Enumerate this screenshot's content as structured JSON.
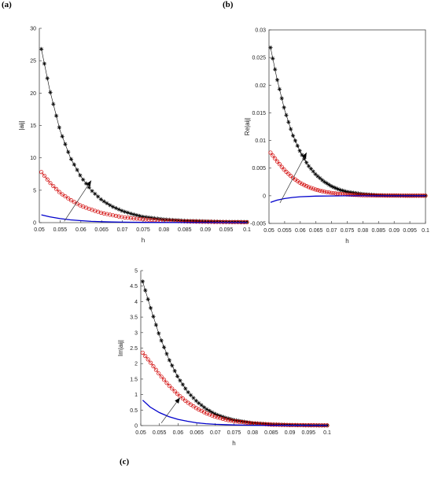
{
  "figure": {
    "panel_labels": [
      "(a)",
      "(b)",
      "(c)"
    ]
  },
  "chart_data": [
    {
      "type": "line",
      "panel": "(a)",
      "xlabel": "h",
      "ylabel": "|aij|",
      "xlim": [
        0.05,
        0.1
      ],
      "ylim": [
        0,
        30
      ],
      "xticks": [
        "0.05",
        "0.055",
        "0.06",
        "0.065",
        "0.07",
        "0.075",
        "0.08",
        "0.085",
        "0.09",
        "0.095",
        "0.1"
      ],
      "yticks": [
        "0",
        "5",
        "10",
        "15",
        "20",
        "25",
        "30"
      ],
      "grid": false,
      "arrow": {
        "from": [
          0.056,
          0.2
        ],
        "to": [
          0.0625,
          6.5
        ]
      },
      "series": [
        {
          "color": "#000000",
          "marker": "asterisk",
          "x": [
            0.0505,
            0.0525,
            0.055,
            0.0575,
            0.06,
            0.0625,
            0.065,
            0.0675,
            0.07,
            0.0725,
            0.075,
            0.08,
            0.085,
            0.09,
            0.095,
            0.1
          ],
          "values": [
            26.8,
            20.5,
            14.2,
            10.0,
            7.1,
            5.0,
            3.5,
            2.5,
            1.8,
            1.3,
            0.9,
            0.5,
            0.3,
            0.2,
            0.12,
            0.1
          ]
        },
        {
          "color": "#d00000",
          "marker": "circle",
          "x": [
            0.0505,
            0.0525,
            0.055,
            0.0575,
            0.06,
            0.0625,
            0.065,
            0.0675,
            0.07,
            0.0725,
            0.075,
            0.08,
            0.085,
            0.09,
            0.095,
            0.1
          ],
          "values": [
            7.8,
            6.2,
            4.6,
            3.5,
            2.6,
            2.0,
            1.5,
            1.15,
            0.85,
            0.65,
            0.5,
            0.3,
            0.18,
            0.12,
            0.08,
            0.05
          ]
        },
        {
          "color": "#0000cc",
          "marker": "none",
          "x": [
            0.0505,
            0.0525,
            0.055,
            0.0575,
            0.06,
            0.0625,
            0.065,
            0.0675,
            0.07,
            0.075,
            0.08,
            0.09,
            0.1
          ],
          "values": [
            1.2,
            0.9,
            0.62,
            0.42,
            0.3,
            0.2,
            0.14,
            0.1,
            0.07,
            0.04,
            0.02,
            0.01,
            0.005
          ]
        }
      ]
    },
    {
      "type": "line",
      "panel": "(b)",
      "xlabel": "h",
      "ylabel": "Re|aij|",
      "xlim": [
        0.05,
        0.1
      ],
      "ylim": [
        -0.005,
        0.03
      ],
      "xticks": [
        "0.05",
        "0.055",
        "0.06",
        "0.065",
        "0.07",
        "0.075",
        "0.08",
        "0.085",
        "0.09",
        "0.095",
        "0.1"
      ],
      "yticks": [
        "-0.005",
        "0",
        "0.005",
        "0.01",
        "0.015",
        "0.02",
        "0.025",
        "0.03"
      ],
      "grid": false,
      "arrow": {
        "from": [
          0.0535,
          -0.0013
        ],
        "to": [
          0.062,
          0.0078
        ]
      },
      "series": [
        {
          "color": "#000000",
          "marker": "asterisk",
          "x": [
            0.0505,
            0.0525,
            0.055,
            0.0575,
            0.06,
            0.0625,
            0.065,
            0.0675,
            0.07,
            0.0725,
            0.075,
            0.08,
            0.085,
            0.09,
            0.095,
            0.1
          ],
          "values": [
            0.0268,
            0.0213,
            0.0155,
            0.0111,
            0.0079,
            0.0055,
            0.0038,
            0.0026,
            0.0017,
            0.0011,
            0.0007,
            0.0003,
            0.0001,
            5e-05,
            2e-05,
            1e-05
          ]
        },
        {
          "color": "#d00000",
          "marker": "circle",
          "x": [
            0.0505,
            0.0525,
            0.055,
            0.0575,
            0.06,
            0.0625,
            0.065,
            0.0675,
            0.07,
            0.0725,
            0.075,
            0.08,
            0.085,
            0.09,
            0.095,
            0.1
          ],
          "values": [
            0.0078,
            0.0063,
            0.0046,
            0.0033,
            0.0023,
            0.0016,
            0.0011,
            0.00075,
            0.0005,
            0.00033,
            0.00022,
            0.0001,
            4e-05,
            2e-05,
            1e-05,
            0.0
          ]
        },
        {
          "color": "#0000cc",
          "marker": "none",
          "x": [
            0.0505,
            0.0525,
            0.055,
            0.0575,
            0.06,
            0.065,
            0.07,
            0.075,
            0.08,
            0.09,
            0.1
          ],
          "values": [
            -0.0012,
            -0.0008,
            -0.0005,
            -0.0003,
            -0.00018,
            -7e-05,
            -3e-05,
            -1e-05,
            0.0,
            0.0,
            0.0
          ]
        }
      ]
    },
    {
      "type": "line",
      "panel": "(c)",
      "xlabel": "h",
      "ylabel": "Im|aij|",
      "xlim": [
        0.05,
        0.1
      ],
      "ylim": [
        0,
        5
      ],
      "xticks": [
        "0.05",
        "0.055",
        "0.06",
        "0.065",
        "0.07",
        "0.075",
        "0.08",
        "0.085",
        "0.09",
        "0.095",
        "0.1"
      ],
      "yticks": [
        "0",
        "0.5",
        "1",
        "1.5",
        "2",
        "2.5",
        "3",
        "3.5",
        "4",
        "4.5",
        "5"
      ],
      "grid": false,
      "arrow": {
        "from": [
          0.0555,
          0.08
        ],
        "to": [
          0.0605,
          0.9
        ]
      },
      "series": [
        {
          "color": "#000000",
          "marker": "asterisk",
          "x": [
            0.0505,
            0.0525,
            0.055,
            0.0575,
            0.06,
            0.0625,
            0.065,
            0.0675,
            0.07,
            0.0725,
            0.075,
            0.08,
            0.085,
            0.09,
            0.095,
            0.1
          ],
          "values": [
            4.65,
            3.85,
            2.9,
            2.15,
            1.55,
            1.1,
            0.78,
            0.54,
            0.37,
            0.26,
            0.18,
            0.08,
            0.04,
            0.02,
            0.01,
            0.005
          ]
        },
        {
          "color": "#d00000",
          "marker": "circle",
          "x": [
            0.0505,
            0.0525,
            0.055,
            0.0575,
            0.06,
            0.0625,
            0.065,
            0.0675,
            0.07,
            0.0725,
            0.075,
            0.08,
            0.085,
            0.09,
            0.095,
            0.1
          ],
          "values": [
            2.35,
            2.05,
            1.65,
            1.3,
            1.0,
            0.75,
            0.55,
            0.4,
            0.28,
            0.2,
            0.14,
            0.07,
            0.03,
            0.015,
            0.008,
            0.004
          ]
        },
        {
          "color": "#0000cc",
          "marker": "none",
          "x": [
            0.0505,
            0.0525,
            0.055,
            0.0575,
            0.06,
            0.0625,
            0.065,
            0.0675,
            0.07,
            0.075,
            0.08,
            0.09,
            0.1
          ],
          "values": [
            0.82,
            0.6,
            0.42,
            0.29,
            0.2,
            0.14,
            0.09,
            0.06,
            0.04,
            0.02,
            0.01,
            0.004,
            0.002
          ]
        }
      ]
    }
  ]
}
